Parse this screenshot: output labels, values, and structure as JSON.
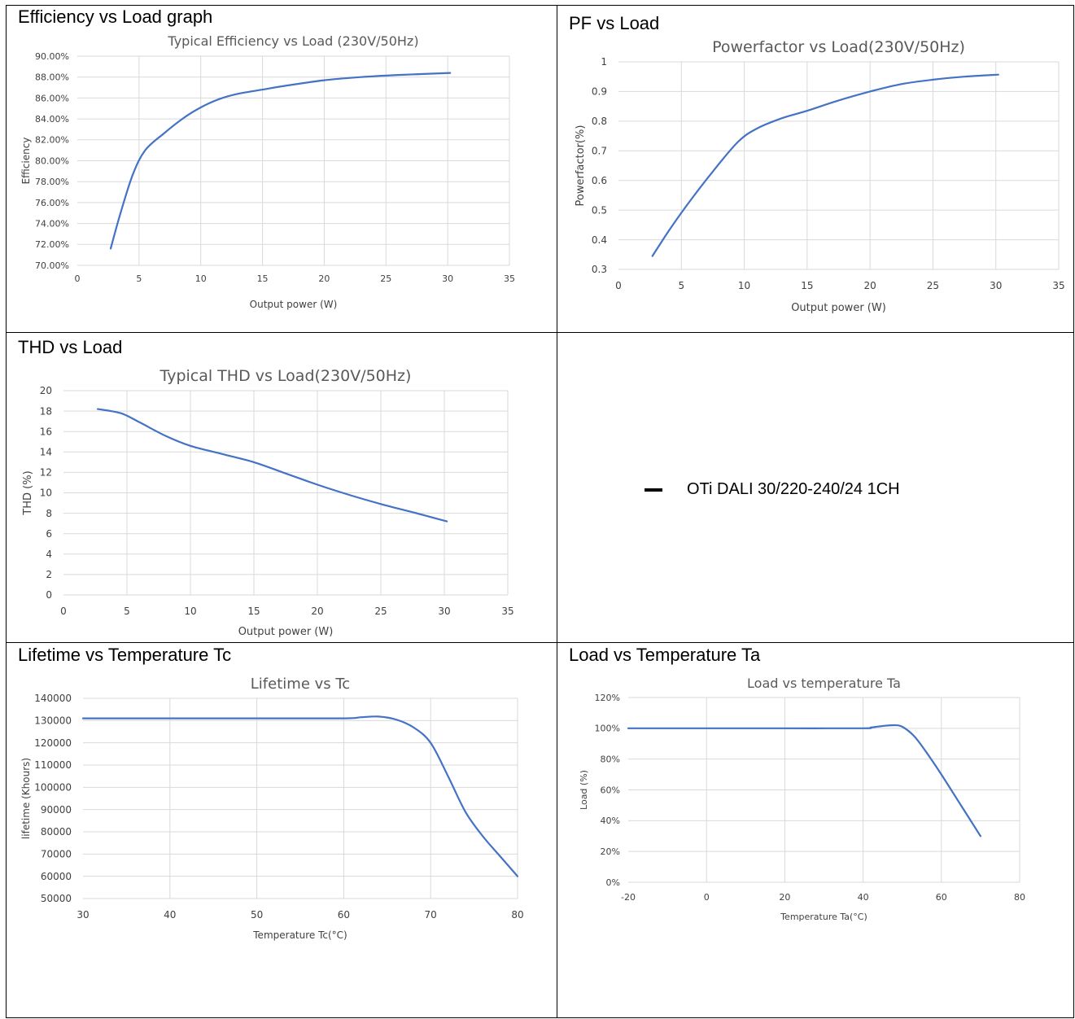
{
  "cells": {
    "efficiency": "Efficiency vs Load graph",
    "pf": "PF vs Load",
    "thd": "THD vs Load",
    "lifetime": "Lifetime vs Temperature Tc",
    "load": "Load vs Temperature Ta"
  },
  "legend": {
    "label": "OTi DALI 30/220-240/24 1CH"
  },
  "colors": {
    "line": "#4472C4",
    "grid": "#D9D9D9"
  },
  "chart_data": [
    {
      "id": "efficiency",
      "type": "line",
      "title": "Typical Efficiency vs Load (230V/50Hz)",
      "xlabel": "Output power (W)",
      "ylabel": "Efficiency",
      "xlim": [
        0,
        35
      ],
      "ylim": [
        0.7,
        0.9
      ],
      "xticks": [
        "0",
        "5",
        "10",
        "15",
        "20",
        "25",
        "30",
        "35"
      ],
      "yticks": [
        "70.00%",
        "72.00%",
        "74.00%",
        "76.00%",
        "78.00%",
        "80.00%",
        "82.00%",
        "84.00%",
        "86.00%",
        "88.00%",
        "90.00%"
      ],
      "grid": true,
      "x": [
        2.7,
        3.5,
        4.5,
        5.5,
        7,
        8.5,
        10,
        11.5,
        13,
        15,
        17,
        20,
        23,
        26,
        30.2
      ],
      "y": [
        0.716,
        0.75,
        0.787,
        0.81,
        0.826,
        0.84,
        0.851,
        0.859,
        0.864,
        0.868,
        0.872,
        0.877,
        0.88,
        0.882,
        0.884
      ]
    },
    {
      "id": "pf",
      "type": "line",
      "title": "Powerfactor vs Load(230V/50Hz)",
      "xlabel": "Output power (W)",
      "ylabel": "Powerfactor(%)",
      "xlim": [
        0,
        35
      ],
      "ylim": [
        0.3,
        1
      ],
      "xticks": [
        "0",
        "5",
        "10",
        "15",
        "20",
        "25",
        "30",
        "35"
      ],
      "yticks": [
        "0.3",
        "0.4",
        "0.5",
        "0.6",
        "0.7",
        "0.8",
        "0.9",
        "1"
      ],
      "grid": true,
      "x": [
        2.7,
        4,
        5.5,
        7.5,
        9.5,
        11,
        13,
        15,
        17.5,
        20,
        22.5,
        25,
        27.5,
        30.2
      ],
      "y": [
        0.345,
        0.43,
        0.52,
        0.63,
        0.73,
        0.775,
        0.81,
        0.835,
        0.87,
        0.9,
        0.925,
        0.94,
        0.95,
        0.957
      ]
    },
    {
      "id": "thd",
      "type": "line",
      "title": "Typical THD vs Load(230V/50Hz)",
      "xlabel": "Output power (W)",
      "ylabel": "THD (%)",
      "xlim": [
        0,
        35
      ],
      "ylim": [
        0,
        20
      ],
      "xticks": [
        "0",
        "5",
        "10",
        "15",
        "20",
        "25",
        "30",
        "35"
      ],
      "yticks": [
        "0",
        "2",
        "4",
        "6",
        "8",
        "10",
        "12",
        "14",
        "16",
        "18",
        "20"
      ],
      "grid": true,
      "x": [
        2.7,
        4.5,
        6,
        8,
        10,
        12.5,
        15,
        17.5,
        20,
        22.5,
        25,
        27.5,
        30.2
      ],
      "y": [
        18.2,
        17.8,
        16.9,
        15.6,
        14.6,
        13.8,
        13.0,
        11.9,
        10.8,
        9.8,
        8.9,
        8.1,
        7.2
      ]
    },
    {
      "id": "lifetime",
      "type": "line",
      "title": "Lifetime vs Tc",
      "xlabel": "Temperature Tc(°C)",
      "ylabel": "lifetime (Khours)",
      "xlim": [
        30,
        80
      ],
      "ylim": [
        50000,
        140000
      ],
      "xticks": [
        "30",
        "40",
        "50",
        "60",
        "70",
        "80"
      ],
      "yticks": [
        "50000",
        "60000",
        "70000",
        "80000",
        "90000",
        "100000",
        "110000",
        "120000",
        "130000",
        "140000"
      ],
      "grid": true,
      "x": [
        30,
        40,
        50,
        60,
        62,
        64,
        66,
        68,
        70,
        72,
        74,
        76,
        78,
        80
      ],
      "y": [
        131000,
        131000,
        131000,
        131000,
        131500,
        131800,
        130500,
        127000,
        120000,
        105000,
        89000,
        78000,
        69000,
        60000
      ]
    },
    {
      "id": "load",
      "type": "line",
      "title": "Load vs temperature Ta",
      "xlabel": "Temperature Ta(°C)",
      "ylabel": "Load (%)",
      "xlim": [
        -20,
        80
      ],
      "ylim": [
        0,
        1.2
      ],
      "xticks": [
        "-20",
        "0",
        "20",
        "40",
        "60",
        "80"
      ],
      "yticks": [
        "0%",
        "20%",
        "40%",
        "60%",
        "80%",
        "100%",
        "120%"
      ],
      "grid": true,
      "x": [
        -20,
        0,
        20,
        40,
        42,
        45,
        48,
        50,
        53,
        56,
        60,
        65,
        70
      ],
      "y": [
        1.0,
        1.0,
        1.0,
        1.0,
        1.005,
        1.015,
        1.02,
        1.01,
        0.95,
        0.85,
        0.7,
        0.5,
        0.3
      ]
    }
  ]
}
